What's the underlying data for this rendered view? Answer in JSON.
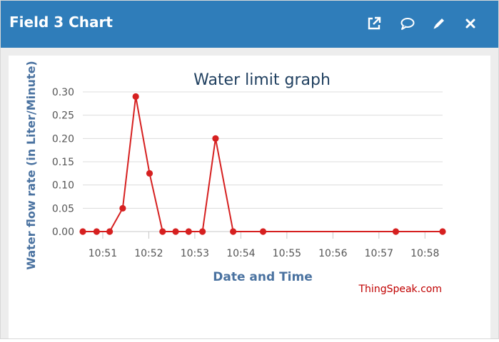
{
  "window": {
    "title": "Field 3 Chart"
  },
  "header_icons": [
    "external-link-icon",
    "comment-icon",
    "pencil-icon",
    "close-icon"
  ],
  "colors": {
    "header": "#2f7dba",
    "series": "#d62020",
    "axis_label": "#4a72a0",
    "watermark": "#c00000"
  },
  "watermark": "ThingSpeak.com",
  "chart_data": {
    "type": "line",
    "title": "Water limit graph",
    "xlabel": "Date and Time",
    "ylabel": "Water flow rate (in Liter/Minute)",
    "ylim": [
      0,
      0.3
    ],
    "y_ticks": [
      "0.00",
      "0.05",
      "0.10",
      "0.15",
      "0.20",
      "0.25",
      "0.30"
    ],
    "xlim": [
      "10:50:34",
      "10:58:23"
    ],
    "x_ticks": [
      "10:51",
      "10:52",
      "10:53",
      "10:54",
      "10:55",
      "10:56",
      "10:57",
      "10:58"
    ],
    "grid": true,
    "series": [
      {
        "x": [
          "10:50:34",
          "10:50:52",
          "10:51:09",
          "10:51:26",
          "10:51:43",
          "10:52:01",
          "10:52:18",
          "10:52:35",
          "10:52:52",
          "10:53:10",
          "10:53:27",
          "10:53:50",
          "10:54:29",
          "10:57:22",
          "10:58:23"
        ],
        "values": [
          0,
          0,
          0,
          0.05,
          0.29,
          0.125,
          0,
          0,
          0,
          0,
          0.2,
          0,
          0,
          0,
          0
        ]
      }
    ]
  }
}
